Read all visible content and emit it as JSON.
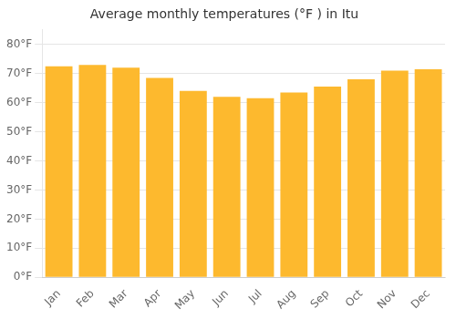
{
  "chart_data": {
    "type": "bar",
    "title": "Average monthly temperatures (°F ) in Itu",
    "categories": [
      "Jan",
      "Feb",
      "Mar",
      "Apr",
      "May",
      "Jun",
      "Jul",
      "Aug",
      "Sep",
      "Oct",
      "Nov",
      "Dec"
    ],
    "values": [
      72.5,
      73.0,
      72.0,
      68.5,
      64.0,
      62.0,
      61.5,
      63.5,
      65.5,
      68.0,
      71.0,
      71.5
    ],
    "color": "#FDB92E",
    "ylim": [
      0,
      85
    ],
    "yticks": [
      {
        "value": 0,
        "label": "0°F"
      },
      {
        "value": 10,
        "label": "10°F"
      },
      {
        "value": 20,
        "label": "20°F"
      },
      {
        "value": 30,
        "label": "30°F"
      },
      {
        "value": 40,
        "label": "40°F"
      },
      {
        "value": 50,
        "label": "50°F"
      },
      {
        "value": 60,
        "label": "60°F"
      },
      {
        "value": 70,
        "label": "70°F"
      },
      {
        "value": 80,
        "label": "80°F"
      }
    ],
    "grid": true
  }
}
